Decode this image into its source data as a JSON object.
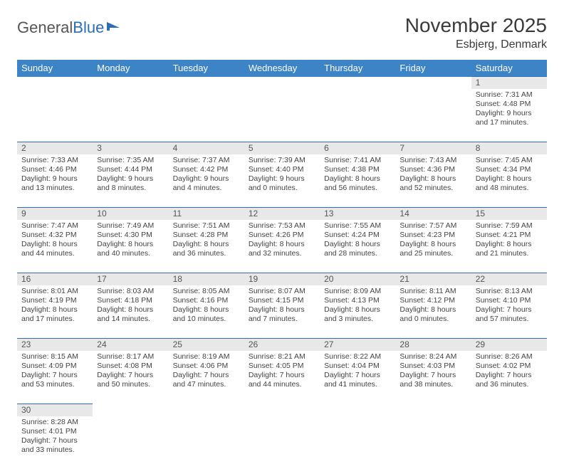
{
  "logo": {
    "text1": "General",
    "text2": "Blue"
  },
  "title": "November 2025",
  "location": "Esbjerg, Denmark",
  "header_bg": "#3d84c6",
  "divider_color": "#2a6db8",
  "daynum_bg": "#e8e8e8",
  "weekdays": [
    "Sunday",
    "Monday",
    "Tuesday",
    "Wednesday",
    "Thursday",
    "Friday",
    "Saturday"
  ],
  "weeks": [
    [
      null,
      null,
      null,
      null,
      null,
      null,
      {
        "n": "1",
        "sr": "Sunrise: 7:31 AM",
        "ss": "Sunset: 4:48 PM",
        "dl": "Daylight: 9 hours and 17 minutes."
      }
    ],
    [
      {
        "n": "2",
        "sr": "Sunrise: 7:33 AM",
        "ss": "Sunset: 4:46 PM",
        "dl": "Daylight: 9 hours and 13 minutes."
      },
      {
        "n": "3",
        "sr": "Sunrise: 7:35 AM",
        "ss": "Sunset: 4:44 PM",
        "dl": "Daylight: 9 hours and 8 minutes."
      },
      {
        "n": "4",
        "sr": "Sunrise: 7:37 AM",
        "ss": "Sunset: 4:42 PM",
        "dl": "Daylight: 9 hours and 4 minutes."
      },
      {
        "n": "5",
        "sr": "Sunrise: 7:39 AM",
        "ss": "Sunset: 4:40 PM",
        "dl": "Daylight: 9 hours and 0 minutes."
      },
      {
        "n": "6",
        "sr": "Sunrise: 7:41 AM",
        "ss": "Sunset: 4:38 PM",
        "dl": "Daylight: 8 hours and 56 minutes."
      },
      {
        "n": "7",
        "sr": "Sunrise: 7:43 AM",
        "ss": "Sunset: 4:36 PM",
        "dl": "Daylight: 8 hours and 52 minutes."
      },
      {
        "n": "8",
        "sr": "Sunrise: 7:45 AM",
        "ss": "Sunset: 4:34 PM",
        "dl": "Daylight: 8 hours and 48 minutes."
      }
    ],
    [
      {
        "n": "9",
        "sr": "Sunrise: 7:47 AM",
        "ss": "Sunset: 4:32 PM",
        "dl": "Daylight: 8 hours and 44 minutes."
      },
      {
        "n": "10",
        "sr": "Sunrise: 7:49 AM",
        "ss": "Sunset: 4:30 PM",
        "dl": "Daylight: 8 hours and 40 minutes."
      },
      {
        "n": "11",
        "sr": "Sunrise: 7:51 AM",
        "ss": "Sunset: 4:28 PM",
        "dl": "Daylight: 8 hours and 36 minutes."
      },
      {
        "n": "12",
        "sr": "Sunrise: 7:53 AM",
        "ss": "Sunset: 4:26 PM",
        "dl": "Daylight: 8 hours and 32 minutes."
      },
      {
        "n": "13",
        "sr": "Sunrise: 7:55 AM",
        "ss": "Sunset: 4:24 PM",
        "dl": "Daylight: 8 hours and 28 minutes."
      },
      {
        "n": "14",
        "sr": "Sunrise: 7:57 AM",
        "ss": "Sunset: 4:23 PM",
        "dl": "Daylight: 8 hours and 25 minutes."
      },
      {
        "n": "15",
        "sr": "Sunrise: 7:59 AM",
        "ss": "Sunset: 4:21 PM",
        "dl": "Daylight: 8 hours and 21 minutes."
      }
    ],
    [
      {
        "n": "16",
        "sr": "Sunrise: 8:01 AM",
        "ss": "Sunset: 4:19 PM",
        "dl": "Daylight: 8 hours and 17 minutes."
      },
      {
        "n": "17",
        "sr": "Sunrise: 8:03 AM",
        "ss": "Sunset: 4:18 PM",
        "dl": "Daylight: 8 hours and 14 minutes."
      },
      {
        "n": "18",
        "sr": "Sunrise: 8:05 AM",
        "ss": "Sunset: 4:16 PM",
        "dl": "Daylight: 8 hours and 10 minutes."
      },
      {
        "n": "19",
        "sr": "Sunrise: 8:07 AM",
        "ss": "Sunset: 4:15 PM",
        "dl": "Daylight: 8 hours and 7 minutes."
      },
      {
        "n": "20",
        "sr": "Sunrise: 8:09 AM",
        "ss": "Sunset: 4:13 PM",
        "dl": "Daylight: 8 hours and 3 minutes."
      },
      {
        "n": "21",
        "sr": "Sunrise: 8:11 AM",
        "ss": "Sunset: 4:12 PM",
        "dl": "Daylight: 8 hours and 0 minutes."
      },
      {
        "n": "22",
        "sr": "Sunrise: 8:13 AM",
        "ss": "Sunset: 4:10 PM",
        "dl": "Daylight: 7 hours and 57 minutes."
      }
    ],
    [
      {
        "n": "23",
        "sr": "Sunrise: 8:15 AM",
        "ss": "Sunset: 4:09 PM",
        "dl": "Daylight: 7 hours and 53 minutes."
      },
      {
        "n": "24",
        "sr": "Sunrise: 8:17 AM",
        "ss": "Sunset: 4:08 PM",
        "dl": "Daylight: 7 hours and 50 minutes."
      },
      {
        "n": "25",
        "sr": "Sunrise: 8:19 AM",
        "ss": "Sunset: 4:06 PM",
        "dl": "Daylight: 7 hours and 47 minutes."
      },
      {
        "n": "26",
        "sr": "Sunrise: 8:21 AM",
        "ss": "Sunset: 4:05 PM",
        "dl": "Daylight: 7 hours and 44 minutes."
      },
      {
        "n": "27",
        "sr": "Sunrise: 8:22 AM",
        "ss": "Sunset: 4:04 PM",
        "dl": "Daylight: 7 hours and 41 minutes."
      },
      {
        "n": "28",
        "sr": "Sunrise: 8:24 AM",
        "ss": "Sunset: 4:03 PM",
        "dl": "Daylight: 7 hours and 38 minutes."
      },
      {
        "n": "29",
        "sr": "Sunrise: 8:26 AM",
        "ss": "Sunset: 4:02 PM",
        "dl": "Daylight: 7 hours and 36 minutes."
      }
    ],
    [
      {
        "n": "30",
        "sr": "Sunrise: 8:28 AM",
        "ss": "Sunset: 4:01 PM",
        "dl": "Daylight: 7 hours and 33 minutes."
      },
      null,
      null,
      null,
      null,
      null,
      null
    ]
  ]
}
